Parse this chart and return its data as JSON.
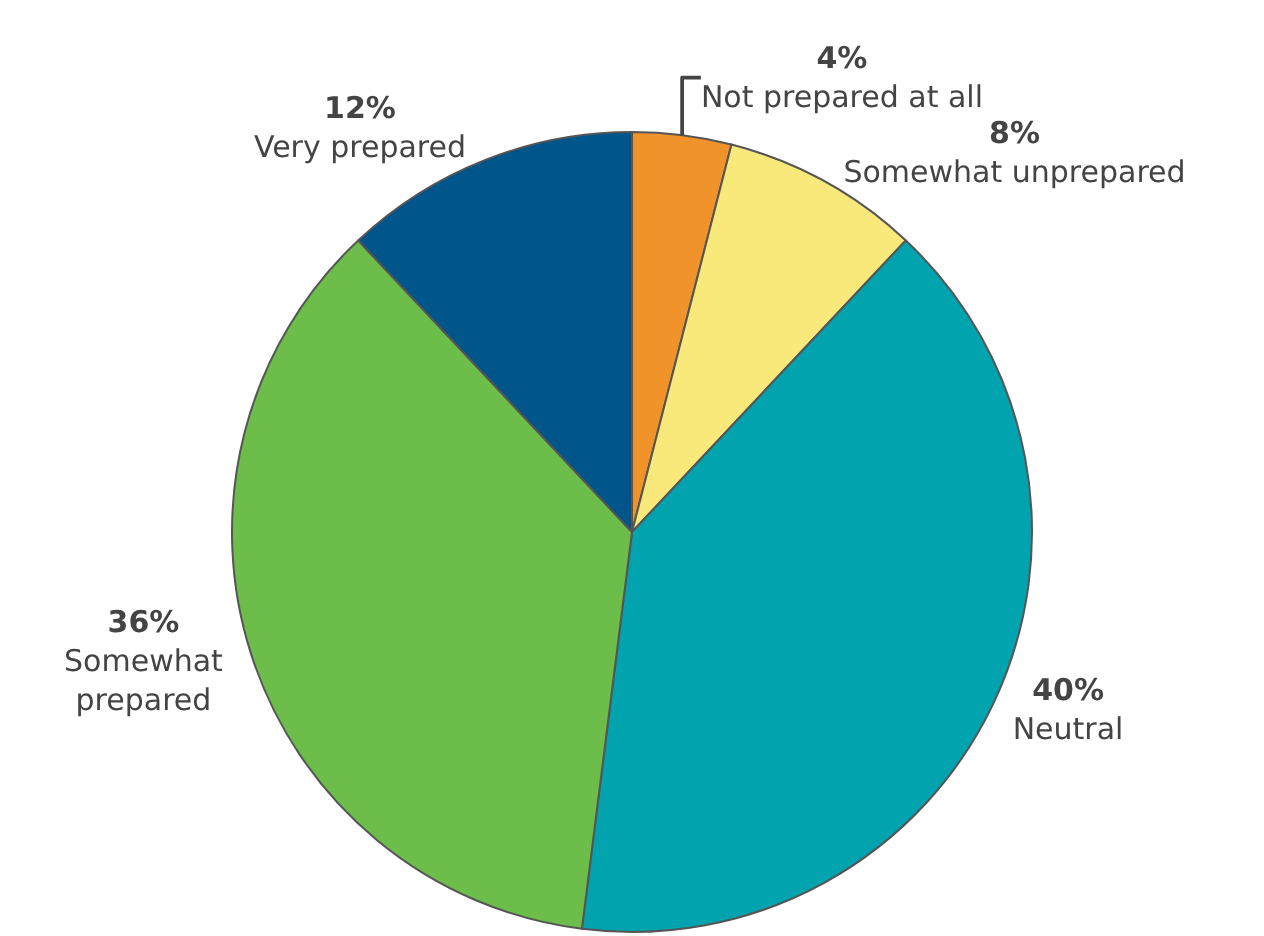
{
  "chart_data": {
    "type": "pie",
    "categories": [
      "Not prepared at all",
      "Somewhat unprepared",
      "Neutral",
      "Somewhat prepared",
      "Very prepared"
    ],
    "values": [
      4,
      8,
      40,
      36,
      12
    ],
    "value_labels": [
      "4%",
      "8%",
      "40%",
      "36%",
      "12%"
    ],
    "colors": [
      "#f0932b",
      "#f9e97b",
      "#00a3ae",
      "#6dbd4b",
      "#00558a"
    ],
    "legend": false
  }
}
